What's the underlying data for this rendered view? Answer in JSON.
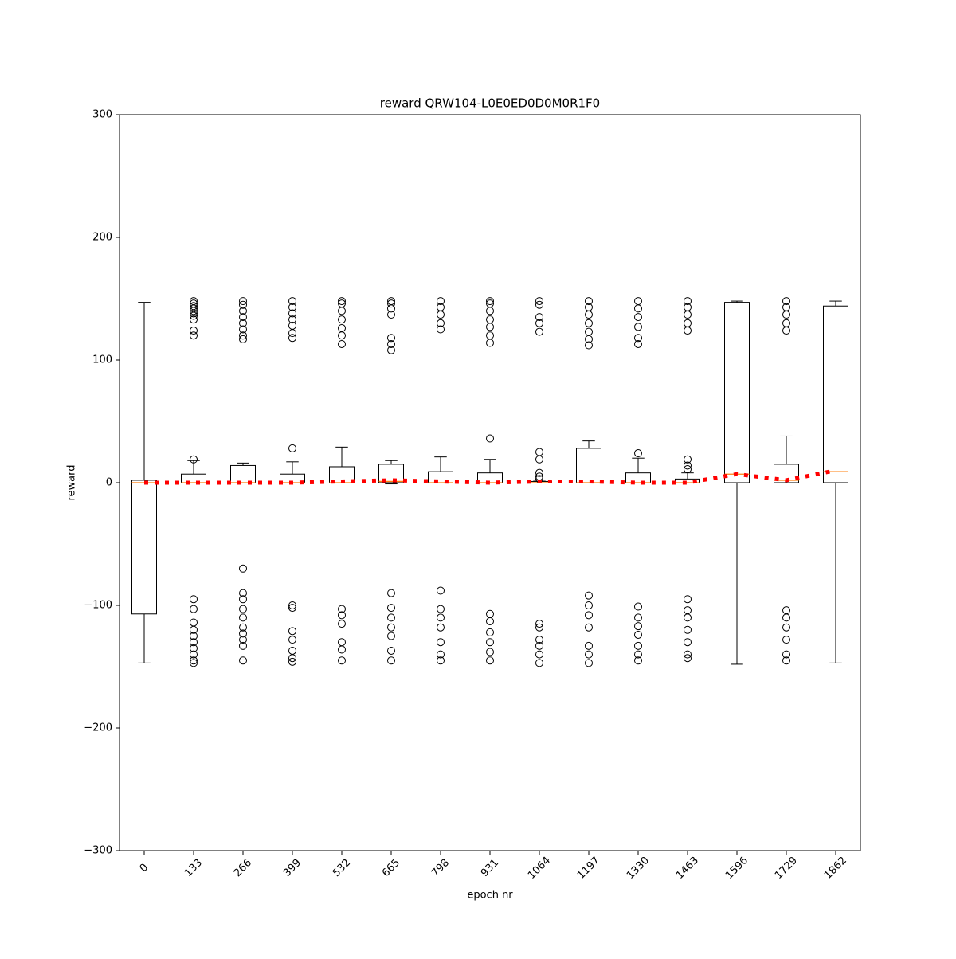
{
  "chart_data": {
    "type": "box",
    "title": "reward QRW104-L0E0ED0D0M0R1F0",
    "x_label": "epoch nr",
    "y_label": "reward",
    "categories": [
      "0",
      "133",
      "266",
      "399",
      "532",
      "665",
      "798",
      "931",
      "1064",
      "1197",
      "1330",
      "1463",
      "1596",
      "1729",
      "1862"
    ],
    "whislo": [
      -147,
      0,
      0,
      0,
      0,
      -1,
      0,
      0,
      0,
      0,
      0,
      0,
      -148,
      0,
      -147
    ],
    "q1": [
      -107,
      0,
      0,
      0,
      0,
      0,
      0,
      0,
      0,
      0,
      0,
      0,
      0,
      0,
      0
    ],
    "med": [
      0,
      0,
      0,
      0,
      0,
      1,
      0,
      0,
      0,
      0,
      0,
      0,
      7,
      2,
      9
    ],
    "q3": [
      2,
      7,
      14,
      7,
      13,
      15,
      9,
      8,
      1,
      28,
      8,
      3,
      147,
      15,
      144
    ],
    "whishi": [
      147,
      18,
      16,
      17,
      29,
      18,
      21,
      19,
      2,
      34,
      20,
      8,
      148,
      38,
      148
    ],
    "fliers": [
      [],
      [
        19,
        120,
        124,
        133,
        136,
        138,
        140,
        142,
        144,
        146,
        148,
        -95,
        -103,
        -114,
        -120,
        -125,
        -130,
        -135,
        -140,
        -145,
        -147
      ],
      [
        117,
        120,
        125,
        130,
        135,
        140,
        145,
        148,
        -70,
        -90,
        -95,
        -103,
        -110,
        -118,
        -123,
        -128,
        -133,
        -145
      ],
      [
        28,
        118,
        122,
        128,
        133,
        138,
        143,
        148,
        -100,
        -102,
        -121,
        -128,
        -137,
        -143,
        -146
      ],
      [
        113,
        120,
        126,
        133,
        140,
        146,
        148,
        -103,
        -108,
        -115,
        -130,
        -136,
        -145
      ],
      [
        108,
        113,
        118,
        137,
        142,
        146,
        148,
        -90,
        -102,
        -110,
        -118,
        -125,
        -137,
        -145
      ],
      [
        125,
        130,
        137,
        143,
        148,
        -88,
        -103,
        -110,
        -118,
        -130,
        -140,
        -145
      ],
      [
        36,
        114,
        120,
        127,
        133,
        140,
        146,
        148,
        -107,
        -113,
        -122,
        -130,
        -138,
        -145
      ],
      [
        3,
        5,
        8,
        19,
        25,
        123,
        130,
        135,
        145,
        148,
        -115,
        -118,
        -128,
        -133,
        -140,
        -147
      ],
      [
        112,
        117,
        123,
        130,
        137,
        143,
        148,
        -92,
        -100,
        -108,
        -118,
        -133,
        -140,
        -147
      ],
      [
        24,
        113,
        118,
        127,
        135,
        142,
        148,
        -101,
        -110,
        -117,
        -124,
        -133,
        -140,
        -145
      ],
      [
        11,
        14,
        19,
        124,
        130,
        137,
        143,
        148,
        -95,
        -104,
        -110,
        -120,
        -130,
        -140,
        -143
      ],
      [],
      [
        124,
        130,
        137,
        143,
        148,
        -104,
        -110,
        -118,
        -128,
        -140,
        -145
      ],
      []
    ],
    "mean": [
      0,
      0,
      0,
      0,
      1,
      2,
      1,
      0,
      1,
      1,
      0,
      0,
      7,
      2,
      10
    ],
    "box_color": "#000000",
    "median_color": "#ff7f0e",
    "mean_color": "#ff0000",
    "ylim": [
      -300,
      300
    ],
    "yticks": [
      {
        "value": -300,
        "label": "−300"
      },
      {
        "value": -200,
        "label": "−200"
      },
      {
        "value": -100,
        "label": "−100"
      },
      0,
      100,
      200,
      300
    ]
  }
}
